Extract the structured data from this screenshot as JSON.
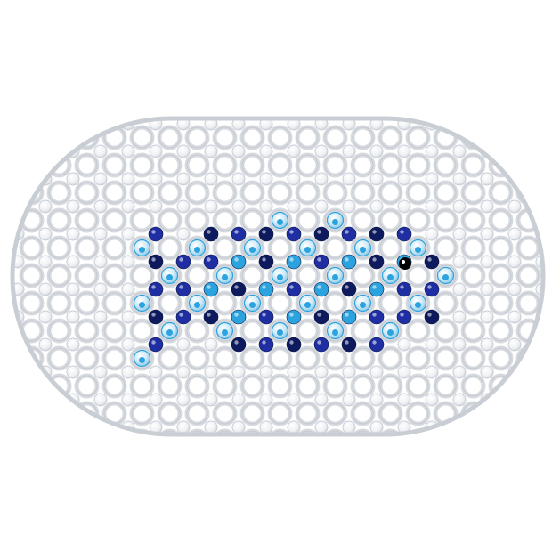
{
  "image": {
    "subject": "bath-mat",
    "pattern": "fish",
    "colors": {
      "background": "#ffffff",
      "mat_frame": "#d7dbe0",
      "mat_frame_dark": "#b9bec6",
      "clear_bead": "#eef0f3",
      "clear_bead_edge": "#c9ced5",
      "fish_dark_blue": "#1f2fa3",
      "fish_navy": "#0d1a5e",
      "fish_sky_blue": "#2aa3df",
      "fish_pale_blue": "#bfe3f5",
      "fish_eye": "#000000"
    }
  }
}
